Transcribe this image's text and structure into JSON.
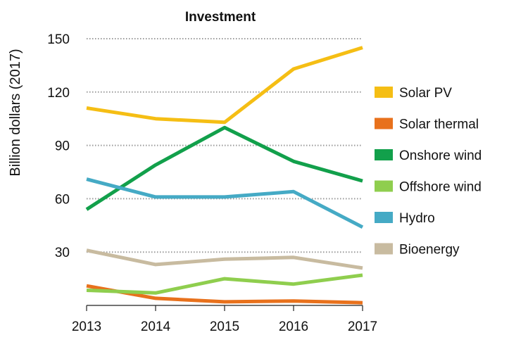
{
  "chart_data": {
    "type": "line",
    "title": "Investment",
    "xlabel": "",
    "ylabel": "Billion dollars (2017)",
    "x": [
      2013,
      2014,
      2015,
      2016,
      2017
    ],
    "x_tick_labels": [
      "2013",
      "2014",
      "2015",
      "2016",
      "2017"
    ],
    "ylim": [
      0,
      150
    ],
    "y_ticks": [
      30,
      60,
      90,
      120,
      150
    ],
    "y_tick_labels": [
      "30",
      "60",
      "90",
      "120",
      "150"
    ],
    "grid": "horizontal dotted",
    "legend_position": "right",
    "series": [
      {
        "name": "Solar PV",
        "color": "#F5BE14",
        "values": [
          111,
          105,
          103,
          133,
          145
        ]
      },
      {
        "name": "Solar thermal",
        "color": "#E8711C",
        "values": [
          11,
          4,
          2,
          2.5,
          1.5
        ]
      },
      {
        "name": "Onshore wind",
        "color": "#12A04B",
        "values": [
          54,
          79,
          100,
          81,
          70
        ]
      },
      {
        "name": "Offshore wind",
        "color": "#8FCE4E",
        "values": [
          8.5,
          7,
          15,
          12,
          17
        ]
      },
      {
        "name": "Hydro",
        "color": "#45AAC5",
        "values": [
          71,
          61,
          61,
          64,
          44
        ]
      },
      {
        "name": "Bioenergy",
        "color": "#C8BBA0",
        "values": [
          31,
          23,
          26,
          27,
          21
        ]
      }
    ]
  }
}
